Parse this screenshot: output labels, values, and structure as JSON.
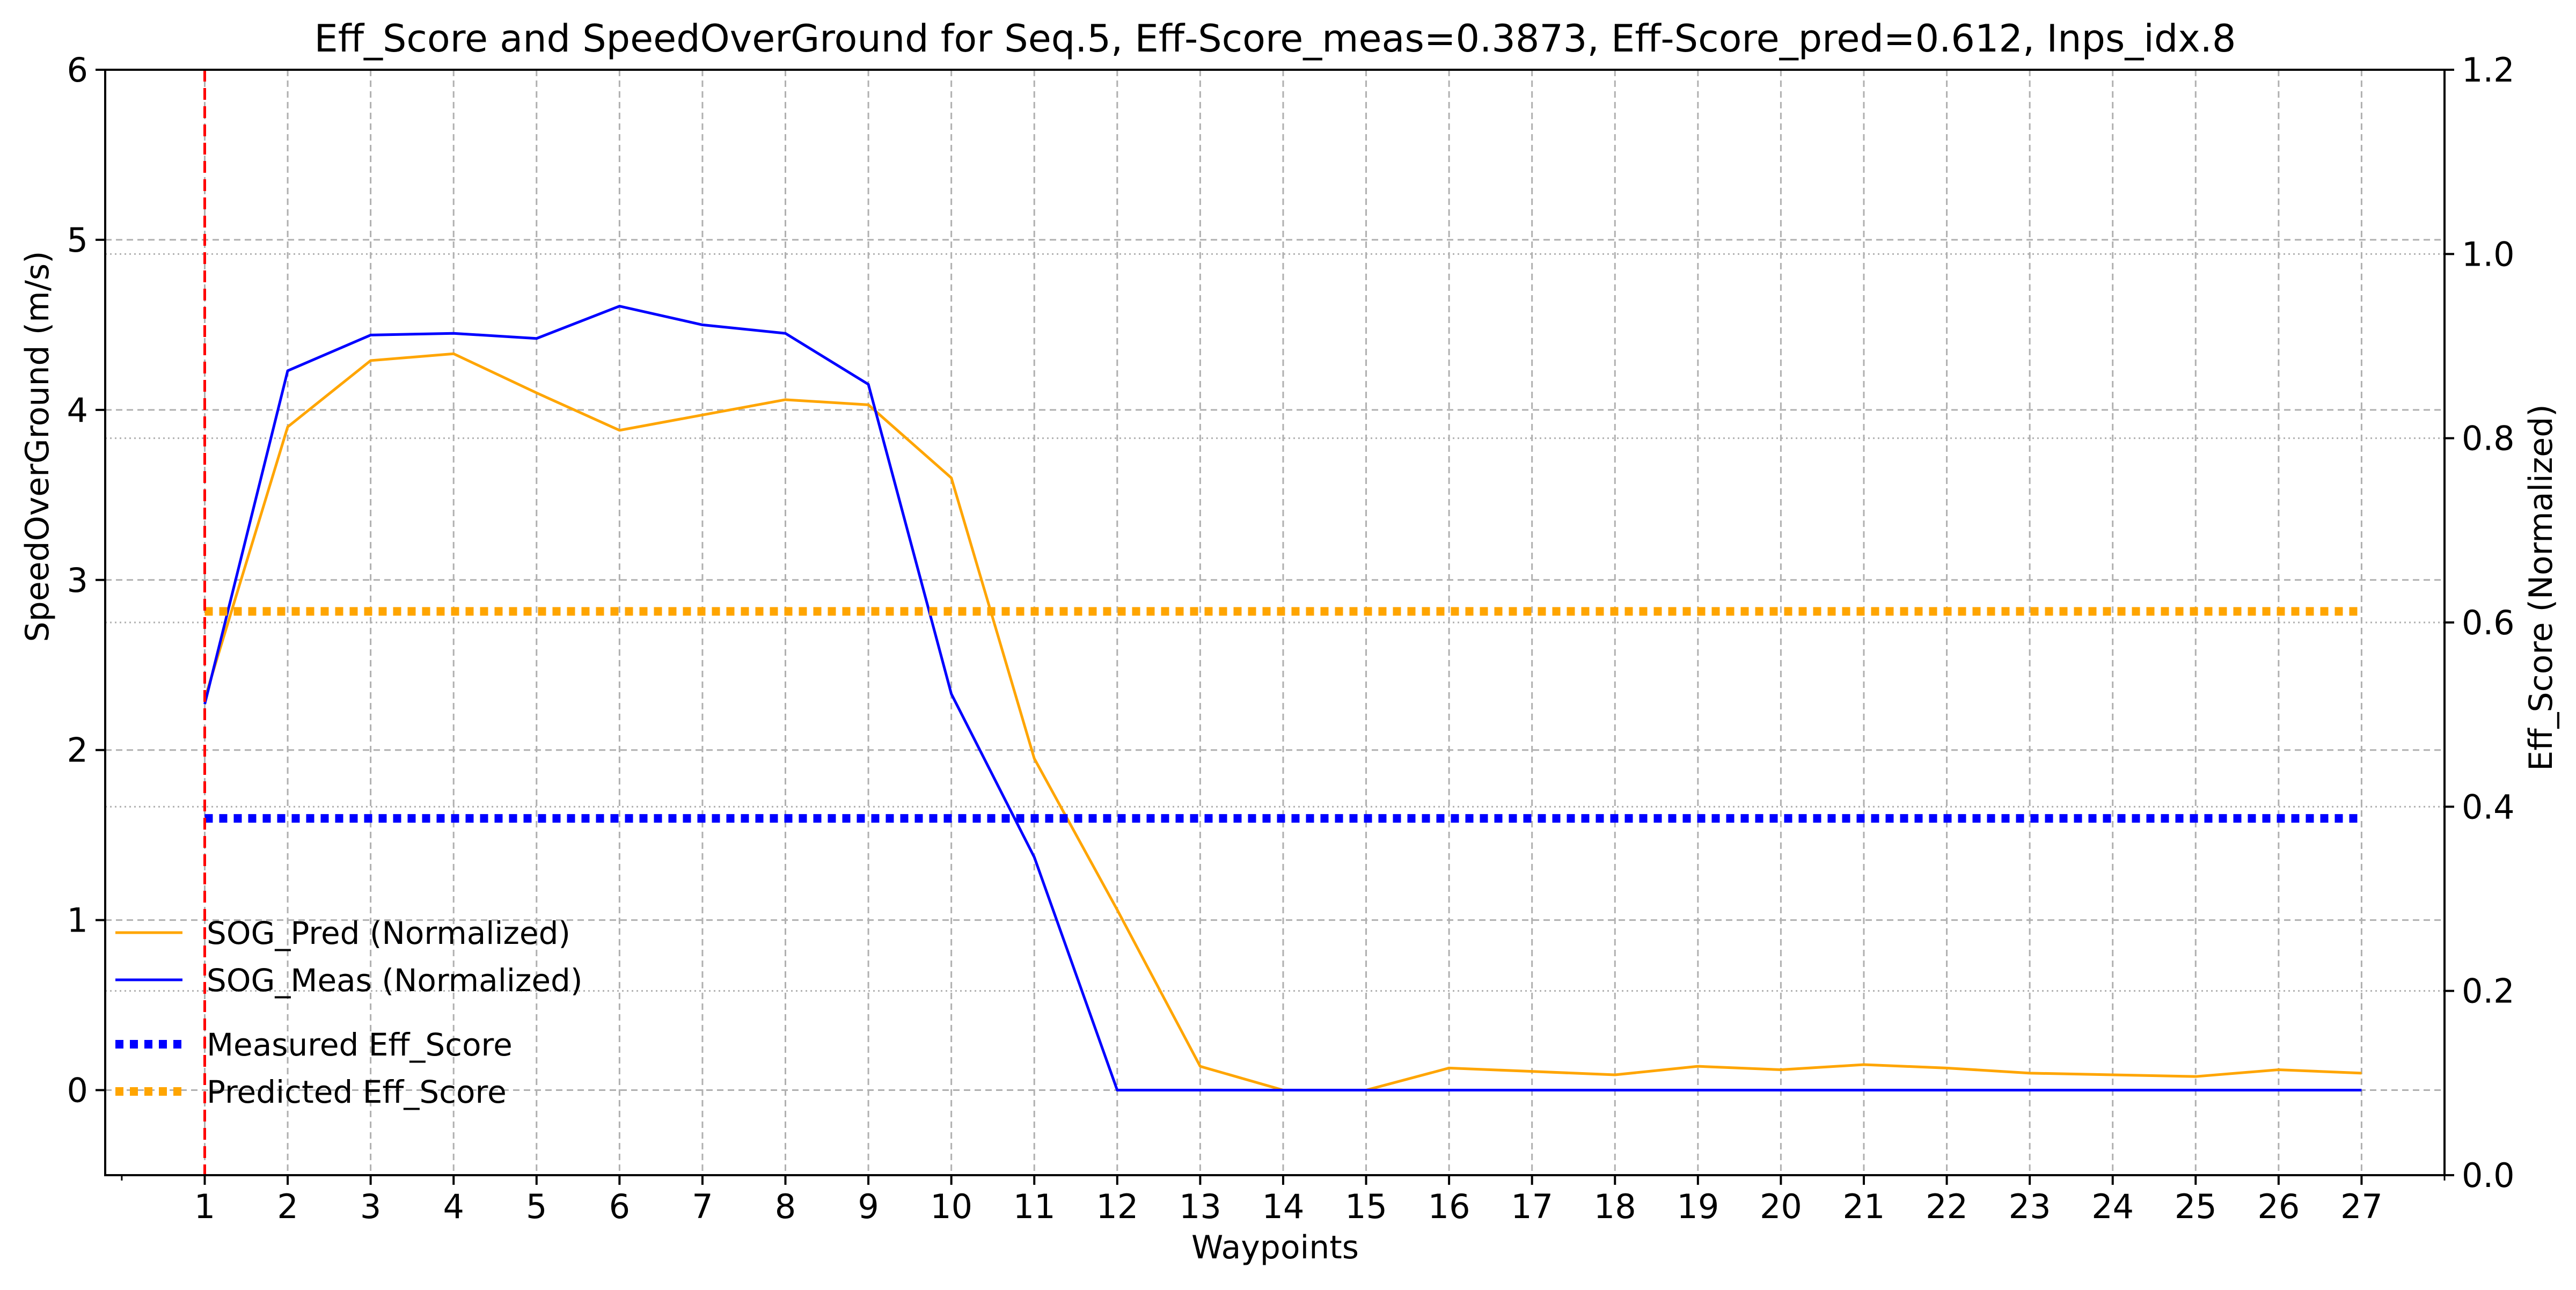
{
  "chart_data": {
    "type": "line",
    "title": "Eff_Score and SpeedOverGround for Seq.5, Eff-Score_meas=0.3873, Eff-Score_pred=0.612, Inps_idx.8",
    "xlabel": "Waypoints",
    "ylabel": "SpeedOverGround (m/s)",
    "ylabel_right": "Eff_Score (Normalized)",
    "x": [
      1,
      2,
      3,
      4,
      5,
      6,
      7,
      8,
      9,
      10,
      11,
      12,
      13,
      14,
      15,
      16,
      17,
      18,
      19,
      20,
      21,
      22,
      23,
      24,
      25,
      26,
      27
    ],
    "x_ticks": [
      "1",
      "2",
      "3",
      "4",
      "5",
      "6",
      "7",
      "8",
      "9",
      "10",
      "11",
      "12",
      "13",
      "14",
      "15",
      "16",
      "17",
      "18",
      "19",
      "20",
      "21",
      "22",
      "23",
      "24",
      "25",
      "26",
      "27"
    ],
    "xlim": [
      -0.2,
      28.0
    ],
    "ylim": [
      -0.5,
      6
    ],
    "ylim_right": [
      0.0,
      1.2
    ],
    "y_ticks": [
      "0",
      "1",
      "2",
      "3",
      "4",
      "5",
      "6"
    ],
    "y_ticks_right": [
      "0.0",
      "0.2",
      "0.4",
      "0.6",
      "0.8",
      "1.0",
      "1.2"
    ],
    "grid": true,
    "legend_position": "lower-left",
    "vertical_marker_x": 1,
    "series": [
      {
        "name": "SOG_Pred (Normalized)",
        "axis": "left",
        "style": "solid",
        "color": "#FFA500",
        "values": [
          2.3,
          3.9,
          4.29,
          4.33,
          4.1,
          3.88,
          3.97,
          4.06,
          4.03,
          3.6,
          1.95,
          1.06,
          0.14,
          0.0,
          0.0,
          0.13,
          0.11,
          0.09,
          0.14,
          0.12,
          0.15,
          0.13,
          0.1,
          0.09,
          0.08,
          0.12,
          0.1
        ]
      },
      {
        "name": "SOG_Meas (Normalized)",
        "axis": "left",
        "style": "solid",
        "color": "#0000FF",
        "values": [
          2.27,
          4.23,
          4.44,
          4.45,
          4.42,
          4.61,
          4.5,
          4.45,
          4.15,
          2.33,
          1.37,
          0.0,
          0.0,
          0.0,
          0.0,
          0.0,
          0.0,
          0.0,
          0.0,
          0.0,
          0.0,
          0.0,
          0.0,
          0.0,
          0.0,
          0.0,
          0.0
        ]
      },
      {
        "name": "Measured Eff_Score",
        "axis": "right",
        "style": "dotted",
        "color": "#0000FF",
        "value": 0.3873
      },
      {
        "name": "Predicted Eff_Score",
        "axis": "right",
        "style": "dotted",
        "color": "#FFA500",
        "value": 0.612
      }
    ],
    "colors": {
      "marker": "#FF0000",
      "grid": "#b0b0b0",
      "axis": "#000000"
    }
  }
}
